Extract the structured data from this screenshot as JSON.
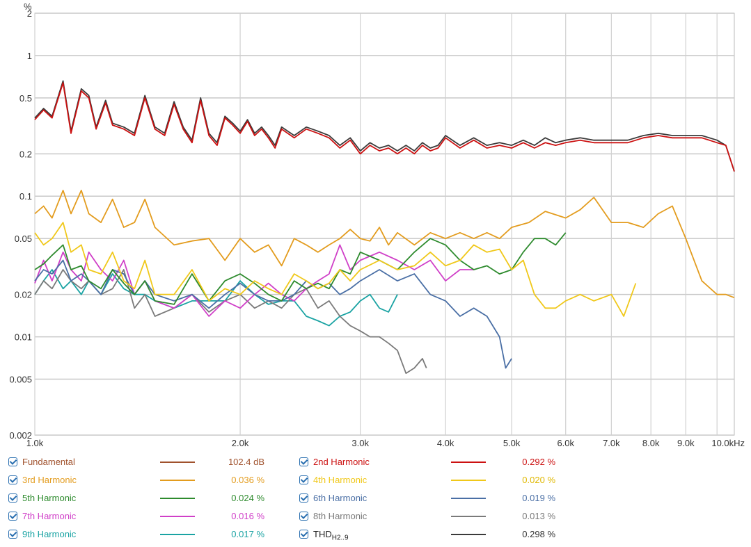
{
  "chart_data": {
    "type": "line",
    "y_unit_label": "%",
    "x_scale": "log",
    "y_scale": "log",
    "xlim": [
      1000,
      10600
    ],
    "ylim": [
      0.002,
      2
    ],
    "x_ticks": [
      {
        "v": 1000,
        "label": "1.0k"
      },
      {
        "v": 2000,
        "label": "2.0k"
      },
      {
        "v": 3000,
        "label": "3.0k"
      },
      {
        "v": 4000,
        "label": "4.0k"
      },
      {
        "v": 5000,
        "label": "5.0k"
      },
      {
        "v": 6000,
        "label": "6.0k"
      },
      {
        "v": 7000,
        "label": "7.0k"
      },
      {
        "v": 8000,
        "label": "8.0k"
      },
      {
        "v": 9000,
        "label": "9.0k"
      },
      {
        "v": 10000,
        "label": "10.0kHz"
      }
    ],
    "y_ticks": [
      {
        "v": 2,
        "label": "2"
      },
      {
        "v": 1,
        "label": "1"
      },
      {
        "v": 0.5,
        "label": "0.5"
      },
      {
        "v": 0.2,
        "label": "0.2"
      },
      {
        "v": 0.1,
        "label": "0.1"
      },
      {
        "v": 0.05,
        "label": "0.05"
      },
      {
        "v": 0.02,
        "label": "0.02"
      },
      {
        "v": 0.01,
        "label": "0.01"
      },
      {
        "v": 0.005,
        "label": "0.005"
      },
      {
        "v": 0.002,
        "label": "0.002"
      }
    ],
    "grid": true,
    "series": [
      {
        "name": "2nd Harmonic",
        "color": "#cc1111",
        "x": [
          1000,
          1030,
          1060,
          1100,
          1130,
          1170,
          1200,
          1230,
          1270,
          1300,
          1350,
          1400,
          1450,
          1500,
          1550,
          1600,
          1650,
          1700,
          1750,
          1800,
          1850,
          1900,
          1950,
          2000,
          2050,
          2100,
          2150,
          2200,
          2250,
          2300,
          2400,
          2500,
          2600,
          2700,
          2800,
          2900,
          3000,
          3100,
          3200,
          3300,
          3400,
          3500,
          3600,
          3700,
          3800,
          3900,
          4000,
          4200,
          4400,
          4600,
          4800,
          5000,
          5200,
          5400,
          5600,
          5800,
          6000,
          6300,
          6600,
          7000,
          7400,
          7800,
          8200,
          8600,
          9000,
          9500,
          10000,
          10300,
          10600
        ],
        "y": [
          0.35,
          0.41,
          0.36,
          0.64,
          0.28,
          0.56,
          0.5,
          0.3,
          0.46,
          0.32,
          0.3,
          0.27,
          0.5,
          0.3,
          0.27,
          0.45,
          0.3,
          0.24,
          0.48,
          0.27,
          0.23,
          0.36,
          0.32,
          0.28,
          0.34,
          0.27,
          0.3,
          0.26,
          0.22,
          0.3,
          0.26,
          0.3,
          0.28,
          0.26,
          0.22,
          0.25,
          0.2,
          0.23,
          0.21,
          0.22,
          0.2,
          0.22,
          0.2,
          0.23,
          0.21,
          0.22,
          0.26,
          0.22,
          0.25,
          0.22,
          0.23,
          0.22,
          0.24,
          0.22,
          0.24,
          0.23,
          0.24,
          0.25,
          0.24,
          0.24,
          0.24,
          0.26,
          0.27,
          0.26,
          0.26,
          0.26,
          0.24,
          0.23,
          0.15
        ]
      },
      {
        "name": "THD H2..9",
        "color": "#3a3a3a",
        "x": [
          1000,
          1030,
          1060,
          1100,
          1130,
          1170,
          1200,
          1230,
          1270,
          1300,
          1350,
          1400,
          1450,
          1500,
          1550,
          1600,
          1650,
          1700,
          1750,
          1800,
          1850,
          1900,
          1950,
          2000,
          2050,
          2100,
          2150,
          2200,
          2250,
          2300,
          2400,
          2500,
          2600,
          2700,
          2800,
          2900,
          3000,
          3100,
          3200,
          3300,
          3400,
          3500,
          3600,
          3700,
          3800,
          3900,
          4000,
          4200,
          4400,
          4600,
          4800,
          5000,
          5200,
          5400,
          5600,
          5800,
          6000,
          6300,
          6600,
          7000,
          7400,
          7800,
          8200,
          8600,
          9000,
          9500,
          10000,
          10300,
          10600
        ],
        "y": [
          0.36,
          0.42,
          0.37,
          0.66,
          0.29,
          0.58,
          0.52,
          0.31,
          0.48,
          0.33,
          0.31,
          0.28,
          0.52,
          0.31,
          0.28,
          0.47,
          0.31,
          0.25,
          0.5,
          0.28,
          0.24,
          0.37,
          0.33,
          0.29,
          0.35,
          0.28,
          0.31,
          0.27,
          0.23,
          0.31,
          0.27,
          0.31,
          0.29,
          0.27,
          0.23,
          0.26,
          0.21,
          0.24,
          0.22,
          0.23,
          0.21,
          0.23,
          0.21,
          0.24,
          0.22,
          0.23,
          0.27,
          0.23,
          0.26,
          0.23,
          0.24,
          0.23,
          0.25,
          0.23,
          0.26,
          0.24,
          0.25,
          0.26,
          0.25,
          0.25,
          0.25,
          0.27,
          0.28,
          0.27,
          0.27,
          0.27,
          0.25,
          0.23,
          0.15
        ]
      },
      {
        "name": "3rd Harmonic",
        "color": "#e39c1e",
        "x": [
          1000,
          1030,
          1060,
          1100,
          1130,
          1170,
          1200,
          1250,
          1300,
          1350,
          1400,
          1450,
          1500,
          1600,
          1700,
          1800,
          1900,
          2000,
          2100,
          2200,
          2300,
          2400,
          2500,
          2600,
          2700,
          2800,
          2900,
          3000,
          3100,
          3200,
          3300,
          3400,
          3600,
          3800,
          4000,
          4200,
          4400,
          4600,
          4800,
          5000,
          5300,
          5600,
          6000,
          6300,
          6600,
          7000,
          7400,
          7800,
          8200,
          8600,
          9000,
          9500,
          10000,
          10300,
          10600
        ],
        "y": [
          0.075,
          0.085,
          0.07,
          0.11,
          0.075,
          0.11,
          0.075,
          0.065,
          0.095,
          0.06,
          0.065,
          0.095,
          0.06,
          0.045,
          0.048,
          0.05,
          0.035,
          0.05,
          0.04,
          0.045,
          0.032,
          0.05,
          0.045,
          0.04,
          0.045,
          0.05,
          0.058,
          0.05,
          0.048,
          0.06,
          0.045,
          0.055,
          0.045,
          0.055,
          0.05,
          0.055,
          0.05,
          0.055,
          0.05,
          0.06,
          0.065,
          0.078,
          0.07,
          0.08,
          0.098,
          0.065,
          0.065,
          0.06,
          0.075,
          0.085,
          0.05,
          0.025,
          0.02,
          0.02,
          0.019
        ]
      },
      {
        "name": "4th Harmonic",
        "color": "#f0c81a",
        "x": [
          1000,
          1030,
          1060,
          1100,
          1130,
          1170,
          1200,
          1250,
          1300,
          1350,
          1400,
          1450,
          1500,
          1600,
          1700,
          1800,
          1900,
          2000,
          2100,
          2200,
          2300,
          2400,
          2500,
          2600,
          2700,
          2800,
          2900,
          3000,
          3200,
          3400,
          3600,
          3800,
          4000,
          4200,
          4400,
          4600,
          4800,
          5000,
          5200,
          5400,
          5600,
          5800,
          6000,
          6300,
          6600,
          7000,
          7300,
          7600
        ],
        "y": [
          0.055,
          0.045,
          0.05,
          0.065,
          0.04,
          0.045,
          0.03,
          0.028,
          0.04,
          0.025,
          0.022,
          0.035,
          0.02,
          0.02,
          0.03,
          0.018,
          0.022,
          0.02,
          0.025,
          0.022,
          0.02,
          0.028,
          0.025,
          0.022,
          0.024,
          0.03,
          0.025,
          0.03,
          0.035,
          0.03,
          0.032,
          0.04,
          0.032,
          0.035,
          0.045,
          0.04,
          0.042,
          0.03,
          0.035,
          0.02,
          0.016,
          0.016,
          0.018,
          0.02,
          0.018,
          0.02,
          0.014,
          0.024
        ]
      },
      {
        "name": "5th Harmonic",
        "color": "#2e8b2e",
        "x": [
          1000,
          1030,
          1060,
          1100,
          1130,
          1170,
          1200,
          1250,
          1300,
          1350,
          1400,
          1450,
          1500,
          1600,
          1700,
          1800,
          1900,
          2000,
          2100,
          2200,
          2300,
          2400,
          2500,
          2600,
          2700,
          2800,
          2900,
          3000,
          3200,
          3400,
          3600,
          3800,
          4000,
          4200,
          4400,
          4600,
          4800,
          5000,
          5200,
          5400,
          5600,
          5800,
          6000
        ],
        "y": [
          0.03,
          0.033,
          0.038,
          0.045,
          0.03,
          0.032,
          0.025,
          0.022,
          0.03,
          0.024,
          0.02,
          0.025,
          0.018,
          0.017,
          0.028,
          0.018,
          0.025,
          0.028,
          0.024,
          0.02,
          0.018,
          0.025,
          0.022,
          0.024,
          0.022,
          0.03,
          0.028,
          0.04,
          0.035,
          0.03,
          0.04,
          0.05,
          0.045,
          0.035,
          0.03,
          0.032,
          0.028,
          0.03,
          0.04,
          0.05,
          0.05,
          0.045,
          0.055
        ]
      },
      {
        "name": "6th Harmonic",
        "color": "#4a6fa5",
        "x": [
          1000,
          1030,
          1060,
          1100,
          1130,
          1170,
          1200,
          1250,
          1300,
          1350,
          1400,
          1450,
          1500,
          1600,
          1700,
          1800,
          1900,
          2000,
          2100,
          2200,
          2300,
          2400,
          2500,
          2600,
          2700,
          2800,
          2900,
          3000,
          3200,
          3400,
          3600,
          3800,
          4000,
          4200,
          4400,
          4600,
          4800,
          4900,
          5000
        ],
        "y": [
          0.025,
          0.03,
          0.028,
          0.035,
          0.025,
          0.028,
          0.025,
          0.02,
          0.03,
          0.028,
          0.02,
          0.025,
          0.02,
          0.018,
          0.02,
          0.016,
          0.02,
          0.024,
          0.02,
          0.018,
          0.018,
          0.02,
          0.025,
          0.022,
          0.024,
          0.02,
          0.022,
          0.025,
          0.03,
          0.025,
          0.028,
          0.02,
          0.018,
          0.014,
          0.016,
          0.014,
          0.01,
          0.006,
          0.007
        ]
      },
      {
        "name": "7th Harmonic",
        "color": "#d040c8",
        "x": [
          1000,
          1030,
          1060,
          1100,
          1130,
          1170,
          1200,
          1250,
          1300,
          1350,
          1400,
          1450,
          1500,
          1600,
          1700,
          1800,
          1900,
          2000,
          2100,
          2200,
          2300,
          2400,
          2500,
          2600,
          2700,
          2800,
          2900,
          3000,
          3200,
          3400,
          3600,
          3800,
          4000,
          4200,
          4400
        ],
        "y": [
          0.024,
          0.035,
          0.025,
          0.04,
          0.03,
          0.025,
          0.04,
          0.03,
          0.025,
          0.035,
          0.02,
          0.025,
          0.018,
          0.016,
          0.02,
          0.014,
          0.018,
          0.016,
          0.02,
          0.024,
          0.02,
          0.018,
          0.022,
          0.025,
          0.028,
          0.045,
          0.03,
          0.035,
          0.04,
          0.035,
          0.03,
          0.035,
          0.025,
          0.03,
          0.03
        ]
      },
      {
        "name": "8th Harmonic",
        "color": "#7a7a7a",
        "x": [
          1000,
          1030,
          1060,
          1100,
          1130,
          1170,
          1200,
          1250,
          1300,
          1350,
          1400,
          1450,
          1500,
          1600,
          1700,
          1800,
          1900,
          2000,
          2100,
          2200,
          2300,
          2400,
          2500,
          2600,
          2700,
          2800,
          2900,
          3000,
          3100,
          3200,
          3300,
          3400,
          3500,
          3600,
          3700,
          3750
        ],
        "y": [
          0.02,
          0.025,
          0.022,
          0.03,
          0.025,
          0.022,
          0.025,
          0.02,
          0.022,
          0.03,
          0.016,
          0.02,
          0.014,
          0.016,
          0.02,
          0.015,
          0.018,
          0.02,
          0.016,
          0.018,
          0.016,
          0.02,
          0.022,
          0.016,
          0.018,
          0.014,
          0.012,
          0.011,
          0.01,
          0.01,
          0.009,
          0.008,
          0.0055,
          0.006,
          0.007,
          0.006
        ]
      },
      {
        "name": "9th Harmonic",
        "color": "#1aa3a3",
        "x": [
          1000,
          1030,
          1060,
          1100,
          1130,
          1170,
          1200,
          1250,
          1300,
          1350,
          1400,
          1450,
          1500,
          1600,
          1700,
          1800,
          1900,
          2000,
          2100,
          2200,
          2300,
          2400,
          2500,
          2600,
          2700,
          2800,
          2900,
          3000,
          3100,
          3200,
          3300,
          3400
        ],
        "y": [
          0.02,
          0.025,
          0.03,
          0.022,
          0.025,
          0.02,
          0.025,
          0.02,
          0.028,
          0.022,
          0.02,
          0.02,
          0.018,
          0.016,
          0.018,
          0.018,
          0.018,
          0.025,
          0.02,
          0.017,
          0.018,
          0.018,
          0.014,
          0.013,
          0.012,
          0.014,
          0.015,
          0.018,
          0.02,
          0.016,
          0.015,
          0.02
        ]
      }
    ]
  },
  "y_unit": "%",
  "legend": [
    [
      {
        "key": "fundamental",
        "name": "Fundamental",
        "color": "#a0522d",
        "value": "102.4 dB",
        "value_color": "#a0522d"
      },
      {
        "key": "h2",
        "name": "2nd Harmonic",
        "color": "#cc1111",
        "value": "0.292 %",
        "value_color": "#cc1111"
      }
    ],
    [
      {
        "key": "h3",
        "name": "3rd Harmonic",
        "color": "#e39c1e",
        "value": "0.036 %",
        "value_color": "#e39c1e"
      },
      {
        "key": "h4",
        "name": "4th Harmonic",
        "color": "#f0c81a",
        "value": "0.020 %",
        "value_color": "#e0b800"
      }
    ],
    [
      {
        "key": "h5",
        "name": "5th Harmonic",
        "color": "#2e8b2e",
        "value": "0.024 %",
        "value_color": "#2e8b2e"
      },
      {
        "key": "h6",
        "name": "6th Harmonic",
        "color": "#4a6fa5",
        "value": "0.019 %",
        "value_color": "#4a6fa5"
      }
    ],
    [
      {
        "key": "h7",
        "name": "7th Harmonic",
        "color": "#d040c8",
        "value": "0.016 %",
        "value_color": "#d040c8"
      },
      {
        "key": "h8",
        "name": "8th Harmonic",
        "color": "#7a7a7a",
        "value": "0.013 %",
        "value_color": "#7a7a7a"
      }
    ],
    [
      {
        "key": "h9",
        "name": "9th Harmonic",
        "color": "#1aa3a3",
        "value": "0.017 %",
        "value_color": "#1aa3a3"
      },
      {
        "key": "thd",
        "name": "THD",
        "name_sub": "H2..9",
        "color": "#3a3a3a",
        "value": "0.298 %",
        "value_color": "#333333"
      }
    ]
  ]
}
